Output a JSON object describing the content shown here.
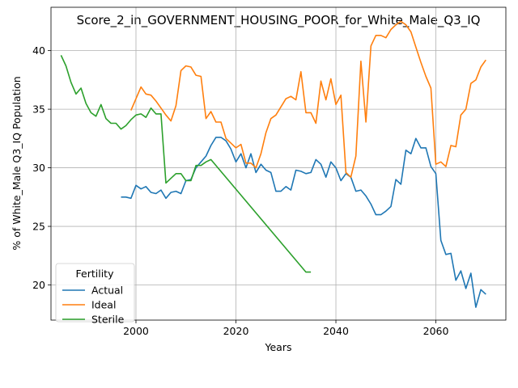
{
  "chart_data": {
    "type": "line",
    "title": "Score_2_in_GOVERNMENT_HOUSING_POOR_for_White_Male_Q3_IQ",
    "xlabel": "Years",
    "ylabel": "% of White_Male Q3_IQ Population",
    "xlim": [
      1983,
      2074
    ],
    "ylim": [
      17,
      43.7
    ],
    "xticks": [
      2000,
      2020,
      2040,
      2060
    ],
    "yticks": [
      20,
      25,
      30,
      35,
      40
    ],
    "grid": true,
    "legend": {
      "title": "Fertility",
      "placement": "lower-left",
      "entries": [
        "Actual",
        "Ideal",
        "Sterile"
      ]
    },
    "series": [
      {
        "name": "Actual",
        "color": "#1f77b4",
        "x": [
          1997,
          1998,
          1999,
          2000,
          2001,
          2002,
          2003,
          2004,
          2005,
          2006,
          2007,
          2008,
          2009,
          2010,
          2011,
          2012,
          2013,
          2014,
          2015,
          2016,
          2017,
          2018,
          2019,
          2020,
          2021,
          2022,
          2023,
          2024,
          2025,
          2026,
          2027,
          2028,
          2029,
          2030,
          2031,
          2032,
          2033,
          2034,
          2035,
          2036,
          2037,
          2038,
          2039,
          2040,
          2041,
          2042,
          2043,
          2044,
          2045,
          2046,
          2047,
          2048,
          2049,
          2050,
          2051,
          2052,
          2053,
          2054,
          2055,
          2056,
          2057,
          2058,
          2059,
          2060,
          2061,
          2062,
          2063,
          2064,
          2065,
          2066,
          2067,
          2068,
          2069,
          2070
        ],
        "y": [
          27.5,
          27.5,
          27.4,
          28.5,
          28.2,
          28.4,
          27.9,
          27.8,
          28.1,
          27.4,
          27.9,
          28.0,
          27.8,
          28.9,
          29.0,
          30.0,
          30.5,
          31.0,
          31.9,
          32.6,
          32.6,
          32.3,
          31.6,
          30.5,
          31.2,
          30.0,
          31.2,
          29.6,
          30.3,
          29.8,
          29.6,
          28.0,
          28.0,
          28.4,
          28.1,
          29.8,
          29.7,
          29.5,
          29.6,
          30.7,
          30.3,
          29.2,
          30.5,
          30.0,
          28.9,
          29.5,
          29.2,
          28.0,
          28.1,
          27.6,
          26.9,
          26.0,
          26.0,
          26.3,
          26.7,
          29.0,
          28.6,
          31.5,
          31.2,
          32.5,
          31.7,
          31.7,
          30.1,
          29.5,
          23.8,
          22.6,
          22.7,
          20.4,
          21.2,
          19.7,
          21.0,
          18.1,
          19.6,
          19.2
        ]
      },
      {
        "name": "Ideal",
        "color": "#ff7f0e",
        "x": [
          1999,
          2000,
          2001,
          2002,
          2003,
          2004,
          2005,
          2006,
          2007,
          2008,
          2009,
          2010,
          2011,
          2012,
          2013,
          2014,
          2015,
          2016,
          2017,
          2018,
          2019,
          2020,
          2021,
          2022,
          2023,
          2024,
          2025,
          2026,
          2027,
          2028,
          2029,
          2030,
          2031,
          2032,
          2033,
          2034,
          2035,
          2036,
          2037,
          2038,
          2039,
          2040,
          2041,
          2042,
          2043,
          2044,
          2045,
          2046,
          2047,
          2048,
          2049,
          2050,
          2051,
          2052,
          2053,
          2054,
          2055,
          2056,
          2057,
          2058,
          2059,
          2060,
          2061,
          2062,
          2063,
          2064,
          2065,
          2066,
          2067,
          2068,
          2069,
          2070
        ],
        "y": [
          34.9,
          35.9,
          36.9,
          36.3,
          36.2,
          35.7,
          35.1,
          34.5,
          34.0,
          35.3,
          38.3,
          38.7,
          38.6,
          37.9,
          37.8,
          34.2,
          34.8,
          33.9,
          33.9,
          32.5,
          32.1,
          31.7,
          32.0,
          30.4,
          30.4,
          30.0,
          31.2,
          33.0,
          34.2,
          34.5,
          35.2,
          35.9,
          36.1,
          35.8,
          38.2,
          34.7,
          34.7,
          33.8,
          37.4,
          35.8,
          37.6,
          35.4,
          36.2,
          29.6,
          29.2,
          31.0,
          39.1,
          33.9,
          40.4,
          41.3,
          41.3,
          41.1,
          41.8,
          42.2,
          42.5,
          42.2,
          41.6,
          40.3,
          39.0,
          37.8,
          36.8,
          30.3,
          30.5,
          30.1,
          31.9,
          31.8,
          34.5,
          35.0,
          37.2,
          37.5,
          38.6,
          39.2
        ]
      },
      {
        "name": "Sterile",
        "color": "#2ca02c",
        "x": [
          1985,
          1986,
          1987,
          1988,
          1989,
          1990,
          1991,
          1992,
          1993,
          1994,
          1995,
          1996,
          1997,
          1998,
          1999,
          2000,
          2001,
          2002,
          2003,
          2004,
          2005,
          2006,
          2007,
          2008,
          2009,
          2010,
          2011,
          2012,
          2013,
          2014,
          2015,
          2034,
          2035
        ],
        "y": [
          39.6,
          38.7,
          37.3,
          36.3,
          36.8,
          35.5,
          34.7,
          34.4,
          35.4,
          34.2,
          33.8,
          33.8,
          33.3,
          33.6,
          34.1,
          34.5,
          34.6,
          34.3,
          35.1,
          34.6,
          34.6,
          28.7,
          29.1,
          29.5,
          29.5,
          28.9,
          28.9,
          30.2,
          30.2,
          30.5,
          30.7,
          21.1,
          21.1
        ]
      }
    ]
  }
}
